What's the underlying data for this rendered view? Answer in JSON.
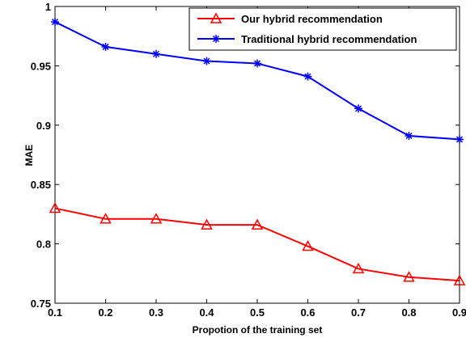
{
  "chart_data": {
    "type": "line",
    "xlabel": "Propotion of the training set",
    "ylabel": "MAE",
    "xlim": [
      0.1,
      0.9
    ],
    "ylim": [
      0.75,
      1.0
    ],
    "x_ticks": [
      "0.1",
      "0.2",
      "0.3",
      "0.4",
      "0.5",
      "0.6",
      "0.7",
      "0.8",
      "0.9"
    ],
    "y_ticks": [
      "0.75",
      "0.8",
      "0.85",
      "0.9",
      "0.95",
      "1"
    ],
    "x": [
      0.1,
      0.2,
      0.3,
      0.4,
      0.5,
      0.6,
      0.7,
      0.8,
      0.9
    ],
    "grid": false,
    "legend_position": "top-right",
    "series": [
      {
        "name": "Our hybrid recommendation",
        "values": [
          0.83,
          0.821,
          0.821,
          0.816,
          0.816,
          0.798,
          0.779,
          0.772,
          0.769
        ],
        "color": "#ff0000",
        "marker": "triangle"
      },
      {
        "name": "Traditional hybrid recommendation",
        "values": [
          0.987,
          0.966,
          0.96,
          0.954,
          0.952,
          0.941,
          0.914,
          0.891,
          0.888
        ],
        "color": "#0000ff",
        "marker": "asterisk"
      }
    ]
  }
}
